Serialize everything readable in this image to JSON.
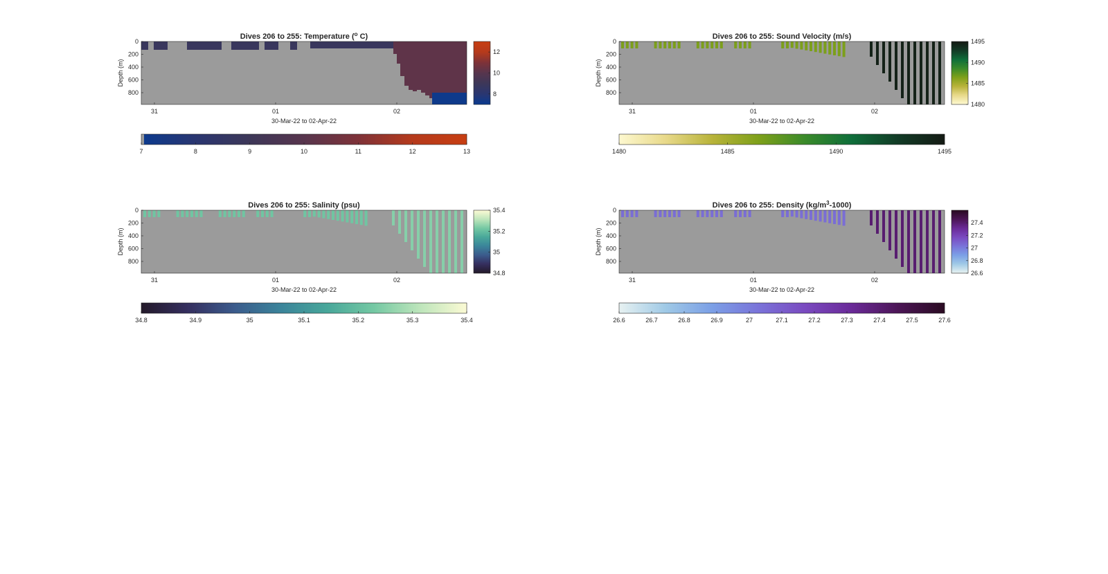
{
  "figure": {
    "xaxis_label": "30-Mar-22 to 02-Apr-22",
    "depth_label": "Depth (m)",
    "depth_ticks": [
      "0",
      "200",
      "400",
      "600",
      "800"
    ],
    "date_ticks": [
      "31",
      "01",
      "02"
    ],
    "background_color": "#ffffff",
    "nodata_color": "#9b9b9b"
  },
  "chart_data": [
    {
      "type": "heatmap",
      "title_prefix": "Dives 206 to 255: Temperature (",
      "title_sup": "o",
      "title_suffix": " C)",
      "xlabel": "30-Mar-22 to 02-Apr-22",
      "ylabel": "Depth (m)",
      "x_range": [
        "30-Mar-22",
        "02-Apr-22"
      ],
      "ylim": [
        0,
        980
      ],
      "y_reversed": true,
      "colormap": [
        "#0b3a8e",
        "#2a3670",
        "#3d3758",
        "#57354d",
        "#7e3238",
        "#b53a1c",
        "#c73e12"
      ],
      "clim": [
        7,
        13
      ],
      "side_colorbar_ticks": [
        "8",
        "10",
        "12"
      ],
      "bottom_colorbar_ticks": [
        "7",
        "8",
        "9",
        "10",
        "11",
        "12",
        "13"
      ],
      "surface_layer_value": 8.8,
      "deep_layer_value": 7.1
    },
    {
      "type": "heatmap",
      "title_prefix": "Dives 206 to 255: Sound Velocity (m/s)",
      "title_sup": "",
      "title_suffix": "",
      "xlabel": "30-Mar-22 to 02-Apr-22",
      "ylabel": "Depth (m)",
      "x_range": [
        "30-Mar-22",
        "02-Apr-22"
      ],
      "ylim": [
        0,
        980
      ],
      "y_reversed": true,
      "colormap": [
        "#fdf8cf",
        "#e8d98a",
        "#b8b33a",
        "#7ea01a",
        "#3a8a2a",
        "#0f6e3a",
        "#123b26",
        "#141b14"
      ],
      "clim": [
        1480,
        1495
      ],
      "side_colorbar_ticks": [
        "1480",
        "1485",
        "1490",
        "1495"
      ],
      "bottom_colorbar_ticks": [
        "1480",
        "1485",
        "1490",
        "1495"
      ],
      "surface_layer_value": 1486.5,
      "deep_layer_value": 1494.5
    },
    {
      "type": "heatmap",
      "title_prefix": "Dives 206 to 255: Salinity (psu)",
      "title_sup": "",
      "title_suffix": "",
      "xlabel": "30-Mar-22 to 02-Apr-22",
      "ylabel": "Depth (m)",
      "x_range": [
        "30-Mar-22",
        "02-Apr-22"
      ],
      "ylim": [
        0,
        980
      ],
      "y_reversed": true,
      "colormap": [
        "#241a2b",
        "#352f5f",
        "#3b5b8c",
        "#3b849a",
        "#48a79a",
        "#74c8a3",
        "#bde5bb",
        "#fbfad4"
      ],
      "clim": [
        34.8,
        35.4
      ],
      "side_colorbar_ticks": [
        "34.8",
        "35",
        "35.2",
        "35.4"
      ],
      "bottom_colorbar_ticks": [
        "34.8",
        "34.9",
        "35",
        "35.1",
        "35.2",
        "35.3",
        "35.4"
      ],
      "surface_layer_value": 35.22,
      "deep_layer_value": 35.25
    },
    {
      "type": "heatmap",
      "title_prefix": "Dives 206 to 255: Density (kg/m",
      "title_sup": "3",
      "title_suffix": "-1000)",
      "xlabel": "30-Mar-22 to 02-Apr-22",
      "ylabel": "Depth (m)",
      "x_range": [
        "30-Mar-22",
        "02-Apr-22"
      ],
      "ylim": [
        0,
        980
      ],
      "y_reversed": true,
      "colormap": [
        "#e6f1f1",
        "#9fc9e6",
        "#7b9fe6",
        "#7a73d9",
        "#7a4ac0",
        "#6a2a98",
        "#4c1556",
        "#2a0b22"
      ],
      "clim": [
        26.6,
        27.6
      ],
      "side_colorbar_ticks": [
        "26.6",
        "26.8",
        "27",
        "27.2",
        "27.4"
      ],
      "bottom_colorbar_ticks": [
        "26.6",
        "26.7",
        "26.8",
        "26.9",
        "27",
        "27.1",
        "27.2",
        "27.3",
        "27.4",
        "27.5",
        "27.6"
      ],
      "surface_layer_value": 27.05,
      "deep_layer_value": 27.4
    }
  ]
}
